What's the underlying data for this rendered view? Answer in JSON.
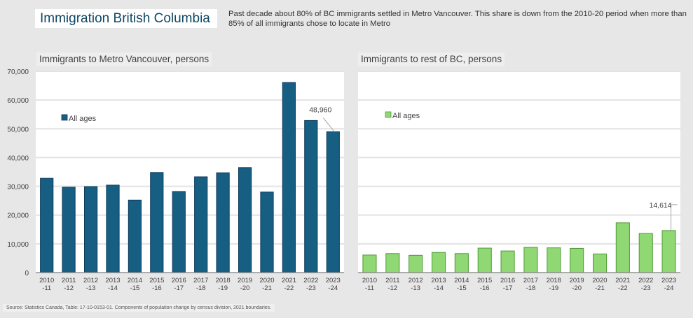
{
  "header": {
    "title": "Immigration British Columbia",
    "subtitle": "Past decade about 80% of BC immigrants settled in Metro Vancouver. This share is down from the 2010-20 period when more than 85% of all immigrants chose to locate in Metro"
  },
  "footer": {
    "source": "Source:  Statistics Canada, Table: 17-10-0153-01.  Components of population change by census division, 2021 boundaries."
  },
  "chart_data": [
    {
      "id": "metro",
      "type": "bar",
      "title": "Immigrants to Metro Vancouver, persons",
      "xlabel": "",
      "ylabel": "",
      "ylim": [
        0,
        70000
      ],
      "yticks": [
        0,
        10000,
        20000,
        30000,
        40000,
        50000,
        60000,
        70000
      ],
      "ytick_labels": [
        "0",
        "10,000",
        "20,000",
        "30,000",
        "40,000",
        "50,000",
        "60,000",
        "70,000"
      ],
      "grid": true,
      "legend": {
        "label": "All ages",
        "placement": "upper-left"
      },
      "categories": [
        [
          "2010",
          "-11"
        ],
        [
          "2011",
          "-12"
        ],
        [
          "2012",
          "-13"
        ],
        [
          "2013",
          "-14"
        ],
        [
          "2014",
          "-15"
        ],
        [
          "2015",
          "-16"
        ],
        [
          "2016",
          "-17"
        ],
        [
          "2017",
          "-18"
        ],
        [
          "2018",
          "-19"
        ],
        [
          "2019",
          "-20"
        ],
        [
          "2020",
          "-21"
        ],
        [
          "2021",
          "-22"
        ],
        [
          "2022",
          "-23"
        ],
        [
          "2023",
          "-24"
        ]
      ],
      "series": [
        {
          "name": "All ages",
          "color": "#175f82",
          "edge_color": "#0d3a5a",
          "values": [
            32800,
            29700,
            29900,
            30400,
            25200,
            34800,
            28200,
            33300,
            34700,
            36500,
            28000,
            66100,
            52900,
            48960
          ]
        }
      ],
      "annotation": {
        "index": 13,
        "text": "48,960"
      }
    },
    {
      "id": "rest",
      "type": "bar",
      "title": "Immigrants to rest of BC, persons",
      "xlabel": "",
      "ylabel": "",
      "ylim": [
        0,
        70000
      ],
      "grid": true,
      "legend": {
        "label": "All ages",
        "placement": "upper-left"
      },
      "categories": [
        [
          "2010",
          "-11"
        ],
        [
          "2011",
          "-12"
        ],
        [
          "2012",
          "-13"
        ],
        [
          "2013",
          "-14"
        ],
        [
          "2014",
          "-15"
        ],
        [
          "2015",
          "-16"
        ],
        [
          "2016",
          "-17"
        ],
        [
          "2017",
          "-18"
        ],
        [
          "2018",
          "-19"
        ],
        [
          "2019",
          "-20"
        ],
        [
          "2020",
          "-21"
        ],
        [
          "2021",
          "-22"
        ],
        [
          "2022",
          "-23"
        ],
        [
          "2023",
          "-24"
        ]
      ],
      "series": [
        {
          "name": "All ages",
          "color": "#8fd873",
          "edge_color": "#4f9a35",
          "values": [
            6100,
            6600,
            6000,
            7000,
            6600,
            8500,
            7500,
            8800,
            8600,
            8400,
            6500,
            17300,
            13600,
            14614
          ]
        }
      ],
      "annotation": {
        "index": 13,
        "text": "14,614"
      }
    }
  ]
}
